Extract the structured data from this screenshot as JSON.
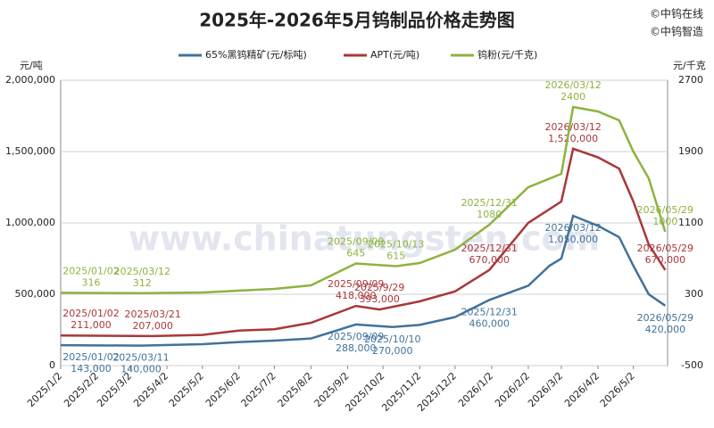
{
  "chart_data": {
    "type": "line",
    "title": "2025年-2026年5月钨制品价格走势图",
    "copyright": [
      "©中钨在线",
      "©中钨智造"
    ],
    "watermark": "www.chinatungsten.com",
    "y_unit": "元/吨",
    "y2_unit": "元/千克",
    "xlim": [
      "2025/1/2",
      "2026/5/31"
    ],
    "xticks": [
      "2025/1/2",
      "2025/2/2",
      "2025/3/2",
      "2025/4/2",
      "2025/5/2",
      "2025/6/2",
      "2025/7/2",
      "2025/8/2",
      "2025/9/2",
      "2025/10/2",
      "2025/11/2",
      "2025/12/2",
      "2026/1/2",
      "2026/2/2",
      "2026/3/2",
      "2026/4/2",
      "2026/5/2"
    ],
    "ylim": [
      0,
      2000000
    ],
    "yticks": [
      0,
      {
        "value": 500000,
        "label": "500,000"
      },
      {
        "value": 1000000,
        "label": "1,000,000"
      },
      {
        "value": 1500000,
        "label": "1,500,000"
      },
      {
        "value": 2000000,
        "label": "2,000,000"
      }
    ],
    "y2lim": [
      -500,
      2700
    ],
    "y2ticks": [
      -500,
      300,
      1100,
      1900,
      2700
    ],
    "grid": true,
    "series": [
      {
        "name": "65%黑钨精矿(元/标吨)",
        "color": "#41729a",
        "x": [
          "2025/1/2",
          "2025/3/11",
          "2025/5/2",
          "2025/6/2",
          "2025/7/2",
          "2025/8/2",
          "2025/9/9",
          "2025/10/10",
          "2025/11/2",
          "2025/12/2",
          "2025/12/31",
          "2026/2/2",
          "2026/2/20",
          "2026/3/2",
          "2026/3/12",
          "2026/4/2",
          "2026/4/20",
          "2026/5/2",
          "2026/5/15",
          "2026/5/29"
        ],
        "values": [
          143000,
          140000,
          150000,
          165000,
          175000,
          190000,
          288000,
          270000,
          285000,
          340000,
          460000,
          560000,
          700000,
          750000,
          1050000,
          980000,
          900000,
          700000,
          500000,
          420000
        ],
        "annotations": [
          {
            "x": "2025/01/02",
            "value": 143000,
            "label": "143,000"
          },
          {
            "x": "2025/03/11",
            "value": 140000,
            "label": "140,000"
          },
          {
            "x": "2025/09/09",
            "value": 288000,
            "label": "288,000"
          },
          {
            "x": "2025/10/10",
            "value": 270000,
            "label": "270,000"
          },
          {
            "x": "2025/12/31",
            "value": 460000,
            "label": "460,000"
          },
          {
            "x": "2026/03/12",
            "value": 1050000,
            "label": "1,050,000"
          },
          {
            "x": "2026/05/29",
            "value": 420000,
            "label": "420,000"
          }
        ]
      },
      {
        "name": "APT(元/吨)",
        "color": "#a9373a",
        "x": [
          "2025/1/2",
          "2025/3/21",
          "2025/5/2",
          "2025/6/2",
          "2025/7/2",
          "2025/8/2",
          "2025/9/9",
          "2025/9/29",
          "2025/11/2",
          "2025/12/2",
          "2025/12/31",
          "2026/2/2",
          "2026/3/2",
          "2026/3/12",
          "2026/4/2",
          "2026/4/20",
          "2026/5/2",
          "2026/5/15",
          "2026/5/29"
        ],
        "values": [
          211000,
          207000,
          215000,
          245000,
          255000,
          300000,
          418000,
          393000,
          450000,
          520000,
          670000,
          1000000,
          1150000,
          1520000,
          1460000,
          1380000,
          1150000,
          850000,
          670000
        ],
        "annotations": [
          {
            "x": "2025/01/02",
            "value": 211000,
            "label": "211,000"
          },
          {
            "x": "2025/03/21",
            "value": 207000,
            "label": "207,000"
          },
          {
            "x": "2025/09/09",
            "value": 418000,
            "label": "418,000"
          },
          {
            "x": "2025/9/29",
            "value": 393000,
            "label": "393,000"
          },
          {
            "x": "2025/12/31",
            "value": 670000,
            "label": "670,000"
          },
          {
            "x": "2026/03/12",
            "value": 1520000,
            "label": "1,520,000"
          },
          {
            "x": "2026/05/29",
            "value": 670000,
            "label": "670,000"
          }
        ]
      },
      {
        "name": "钨粉(元/千克)",
        "color": "#8db33f",
        "axis": "y2",
        "x": [
          "2025/1/2",
          "2025/3/12",
          "2025/5/2",
          "2025/7/2",
          "2025/8/2",
          "2025/9/9",
          "2025/10/13",
          "2025/11/2",
          "2025/12/2",
          "2025/12/31",
          "2026/2/2",
          "2026/3/2",
          "2026/3/12",
          "2026/4/2",
          "2026/4/20",
          "2026/5/2",
          "2026/5/15",
          "2026/5/29"
        ],
        "values": [
          316,
          312,
          320,
          360,
          400,
          645,
          615,
          650,
          800,
          1080,
          1500,
          1650,
          2400,
          2350,
          2250,
          1900,
          1600,
          1000
        ],
        "annotations": [
          {
            "x": "2025/01/02",
            "value": 316
          },
          {
            "x": "2025/03/12",
            "value": 312
          },
          {
            "x": "2025/09/09",
            "value": 645
          },
          {
            "x": "2025/10/13",
            "value": 615
          },
          {
            "x": "2025/12/31",
            "value": 1080
          },
          {
            "x": "2026/03/12",
            "value": 2400
          },
          {
            "x": "2026/05/29",
            "value": 1000
          }
        ]
      }
    ]
  }
}
